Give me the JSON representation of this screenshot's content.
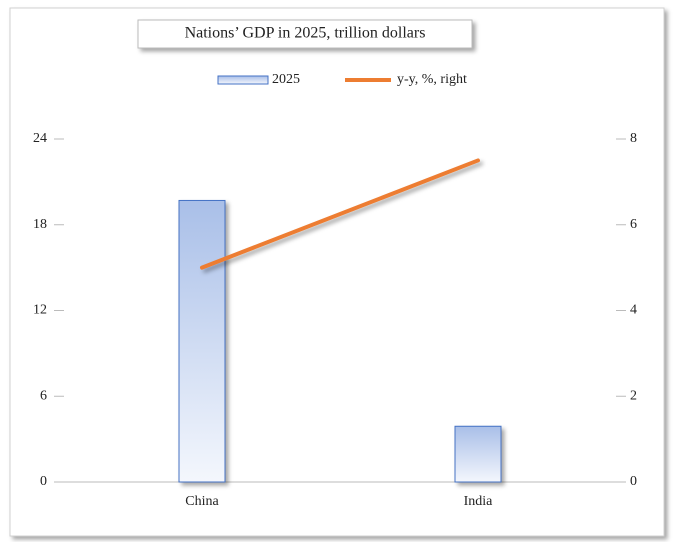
{
  "chart_data": {
    "type": "bar",
    "title": "Nations’ GDP in 2025, trillion dollars",
    "categories": [
      "China",
      "India"
    ],
    "series": [
      {
        "name": "2025",
        "type": "bar",
        "color": "#4472c4",
        "values": [
          19.7,
          3.9
        ]
      },
      {
        "name": "y-y, %, right",
        "type": "line",
        "axis": "y2",
        "color": "#ed7d31",
        "values": [
          5.0,
          7.5
        ]
      }
    ],
    "ylim": [
      0,
      24
    ],
    "yticks": [
      0,
      6,
      12,
      18,
      24
    ],
    "y2lim": [
      0,
      8
    ],
    "y2ticks": [
      0,
      2,
      4,
      6,
      8
    ],
    "legend": "top",
    "grid": false
  }
}
